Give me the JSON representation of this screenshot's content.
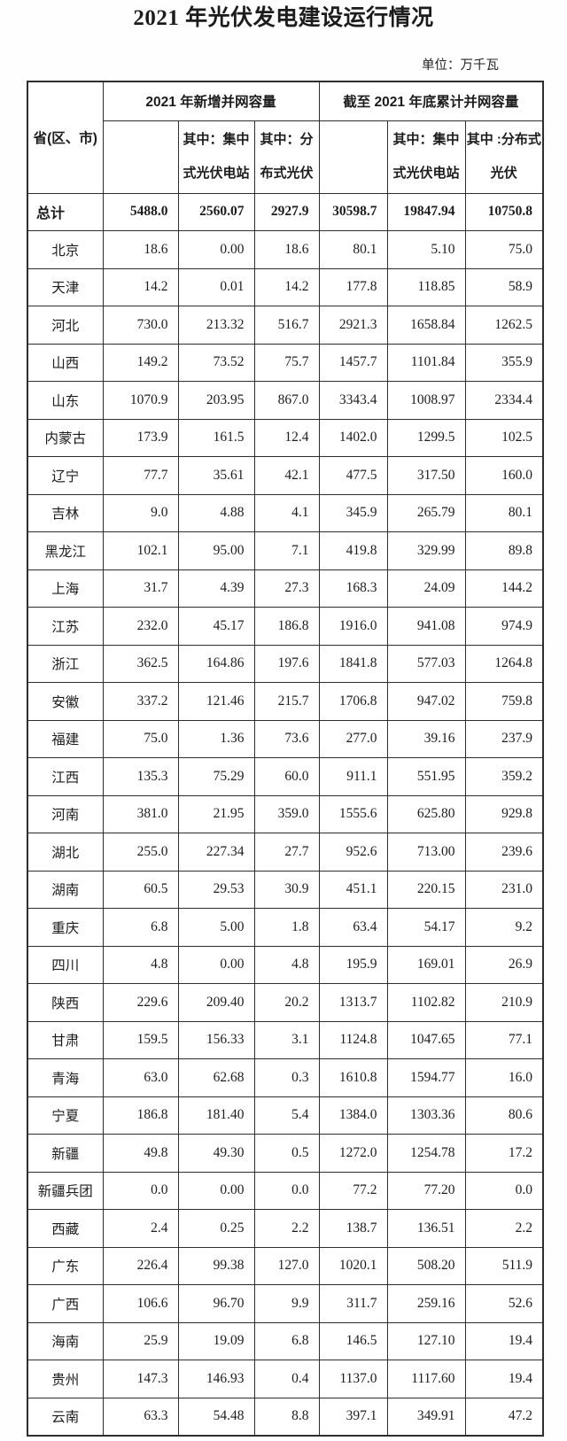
{
  "page": {
    "title": "2021 年光伏发电建设运行情况",
    "unit_label": "单位：万千瓦"
  },
  "table": {
    "corner_header": "省(区、市)",
    "groups": [
      {
        "label": "2021 年新增并网容量"
      },
      {
        "label": "截至 2021 年底累计并网容量"
      }
    ],
    "sub_headers": [
      "",
      "其中：集中\n式光伏电站",
      "其中：分\n布式光伏",
      "",
      "其中：集中\n式光伏电站",
      "其中 :分布式\n光伏"
    ],
    "rows": [
      {
        "province": "总计",
        "bold": true,
        "values": [
          "5488.0",
          "2560.07",
          "2927.9",
          "30598.7",
          "19847.94",
          "10750.8"
        ]
      },
      {
        "province": "北京",
        "bold": false,
        "values": [
          "18.6",
          "0.00",
          "18.6",
          "80.1",
          "5.10",
          "75.0"
        ]
      },
      {
        "province": "天津",
        "bold": false,
        "values": [
          "14.2",
          "0.01",
          "14.2",
          "177.8",
          "118.85",
          "58.9"
        ]
      },
      {
        "province": "河北",
        "bold": false,
        "values": [
          "730.0",
          "213.32",
          "516.7",
          "2921.3",
          "1658.84",
          "1262.5"
        ]
      },
      {
        "province": "山西",
        "bold": false,
        "values": [
          "149.2",
          "73.52",
          "75.7",
          "1457.7",
          "1101.84",
          "355.9"
        ]
      },
      {
        "province": "山东",
        "bold": false,
        "values": [
          "1070.9",
          "203.95",
          "867.0",
          "3343.4",
          "1008.97",
          "2334.4"
        ]
      },
      {
        "province": "内蒙古",
        "bold": false,
        "values": [
          "173.9",
          "161.5",
          "12.4",
          "1402.0",
          "1299.5",
          "102.5"
        ]
      },
      {
        "province": "辽宁",
        "bold": false,
        "values": [
          "77.7",
          "35.61",
          "42.1",
          "477.5",
          "317.50",
          "160.0"
        ]
      },
      {
        "province": "吉林",
        "bold": false,
        "values": [
          "9.0",
          "4.88",
          "4.1",
          "345.9",
          "265.79",
          "80.1"
        ]
      },
      {
        "province": "黑龙江",
        "bold": false,
        "values": [
          "102.1",
          "95.00",
          "7.1",
          "419.8",
          "329.99",
          "89.8"
        ]
      },
      {
        "province": "上海",
        "bold": false,
        "values": [
          "31.7",
          "4.39",
          "27.3",
          "168.3",
          "24.09",
          "144.2"
        ]
      },
      {
        "province": "江苏",
        "bold": false,
        "values": [
          "232.0",
          "45.17",
          "186.8",
          "1916.0",
          "941.08",
          "974.9"
        ]
      },
      {
        "province": "浙江",
        "bold": false,
        "values": [
          "362.5",
          "164.86",
          "197.6",
          "1841.8",
          "577.03",
          "1264.8"
        ]
      },
      {
        "province": "安徽",
        "bold": false,
        "values": [
          "337.2",
          "121.46",
          "215.7",
          "1706.8",
          "947.02",
          "759.8"
        ]
      },
      {
        "province": "福建",
        "bold": false,
        "values": [
          "75.0",
          "1.36",
          "73.6",
          "277.0",
          "39.16",
          "237.9"
        ]
      },
      {
        "province": "江西",
        "bold": false,
        "values": [
          "135.3",
          "75.29",
          "60.0",
          "911.1",
          "551.95",
          "359.2"
        ]
      },
      {
        "province": "河南",
        "bold": false,
        "values": [
          "381.0",
          "21.95",
          "359.0",
          "1555.6",
          "625.80",
          "929.8"
        ]
      },
      {
        "province": "湖北",
        "bold": false,
        "values": [
          "255.0",
          "227.34",
          "27.7",
          "952.6",
          "713.00",
          "239.6"
        ]
      },
      {
        "province": "湖南",
        "bold": false,
        "values": [
          "60.5",
          "29.53",
          "30.9",
          "451.1",
          "220.15",
          "231.0"
        ]
      },
      {
        "province": "重庆",
        "bold": false,
        "values": [
          "6.8",
          "5.00",
          "1.8",
          "63.4",
          "54.17",
          "9.2"
        ]
      },
      {
        "province": "四川",
        "bold": false,
        "values": [
          "4.8",
          "0.00",
          "4.8",
          "195.9",
          "169.01",
          "26.9"
        ]
      },
      {
        "province": "陕西",
        "bold": false,
        "values": [
          "229.6",
          "209.40",
          "20.2",
          "1313.7",
          "1102.82",
          "210.9"
        ]
      },
      {
        "province": "甘肃",
        "bold": false,
        "values": [
          "159.5",
          "156.33",
          "3.1",
          "1124.8",
          "1047.65",
          "77.1"
        ]
      },
      {
        "province": "青海",
        "bold": false,
        "values": [
          "63.0",
          "62.68",
          "0.3",
          "1610.8",
          "1594.77",
          "16.0"
        ]
      },
      {
        "province": "宁夏",
        "bold": false,
        "values": [
          "186.8",
          "181.40",
          "5.4",
          "1384.0",
          "1303.36",
          "80.6"
        ]
      },
      {
        "province": "新疆",
        "bold": false,
        "values": [
          "49.8",
          "49.30",
          "0.5",
          "1272.0",
          "1254.78",
          "17.2"
        ]
      },
      {
        "province": "新疆兵团",
        "bold": false,
        "values": [
          "0.0",
          "0.00",
          "0.0",
          "77.2",
          "77.20",
          "0.0"
        ]
      },
      {
        "province": "西藏",
        "bold": false,
        "values": [
          "2.4",
          "0.25",
          "2.2",
          "138.7",
          "136.51",
          "2.2"
        ]
      },
      {
        "province": "广东",
        "bold": false,
        "values": [
          "226.4",
          "99.38",
          "127.0",
          "1020.1",
          "508.20",
          "511.9"
        ]
      },
      {
        "province": "广西",
        "bold": false,
        "values": [
          "106.6",
          "96.70",
          "9.9",
          "311.7",
          "259.16",
          "52.6"
        ]
      },
      {
        "province": "海南",
        "bold": false,
        "values": [
          "25.9",
          "19.09",
          "6.8",
          "146.5",
          "127.10",
          "19.4"
        ]
      },
      {
        "province": "贵州",
        "bold": false,
        "values": [
          "147.3",
          "146.93",
          "0.4",
          "1137.0",
          "1117.60",
          "19.4"
        ]
      },
      {
        "province": "云南",
        "bold": false,
        "values": [
          "63.3",
          "54.48",
          "8.8",
          "397.1",
          "349.91",
          "47.2"
        ]
      }
    ]
  }
}
